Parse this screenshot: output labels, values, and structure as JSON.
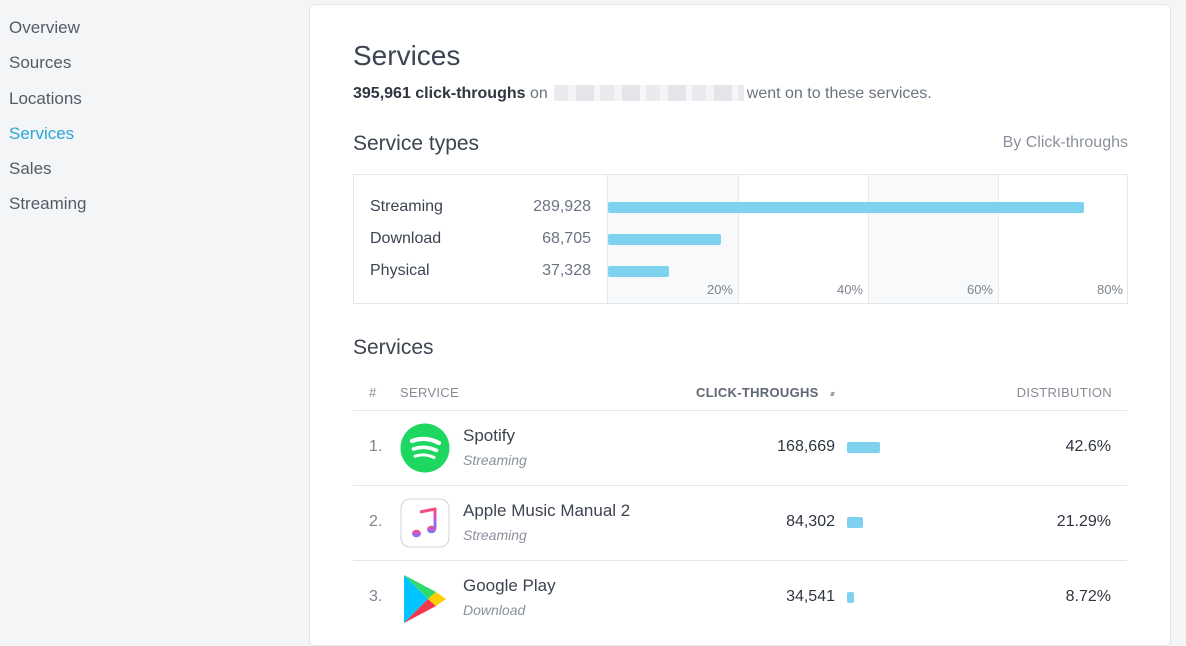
{
  "sidebar": {
    "items": [
      {
        "label": "Overview",
        "active": false
      },
      {
        "label": "Sources",
        "active": false
      },
      {
        "label": "Locations",
        "active": false
      },
      {
        "label": "Services",
        "active": true
      },
      {
        "label": "Sales",
        "active": false
      },
      {
        "label": "Streaming",
        "active": false
      }
    ]
  },
  "page": {
    "title": "Services",
    "summary_count": "395,961 click-throughs",
    "summary_on": "on",
    "summary_rest": "went on to these services."
  },
  "service_types": {
    "title": "Service types",
    "sort_label": "By Click-throughs",
    "chart_data": {
      "type": "bar",
      "orientation": "horizontal",
      "categories": [
        "Streaming",
        "Download",
        "Physical"
      ],
      "values": [
        289928,
        68705,
        37328
      ],
      "value_labels": [
        "289,928",
        "68,705",
        "37,328"
      ],
      "percent_of_total": [
        73.2,
        17.4,
        9.4
      ],
      "x_ticks": [
        "20%",
        "40%",
        "60%",
        "80%"
      ],
      "xlim": [
        0,
        80
      ],
      "bar_color": "#7fd1f0"
    }
  },
  "services_table": {
    "title": "Services",
    "columns": {
      "rank": "#",
      "service": "SERVICE",
      "clicks": "CLICK-THROUGHS",
      "sort_icon": "sort-icon",
      "distribution": "DISTRIBUTION"
    },
    "rows": [
      {
        "rank": "1.",
        "name": "Spotify",
        "type": "Streaming",
        "clicks": "168,669",
        "distribution": "42.6%",
        "share": 42.6,
        "icon": "spotify-icon",
        "color": "#1ed760"
      },
      {
        "rank": "2.",
        "name": "Apple Music Manual 2",
        "type": "Streaming",
        "clicks": "84,302",
        "distribution": "21.29%",
        "share": 21.29,
        "icon": "apple-music-icon",
        "color": "#fa3c5a"
      },
      {
        "rank": "3.",
        "name": "Google Play",
        "type": "Download",
        "clicks": "34,541",
        "distribution": "8.72%",
        "share": 8.72,
        "icon": "google-play-icon",
        "color": "#00c3ff"
      }
    ]
  }
}
